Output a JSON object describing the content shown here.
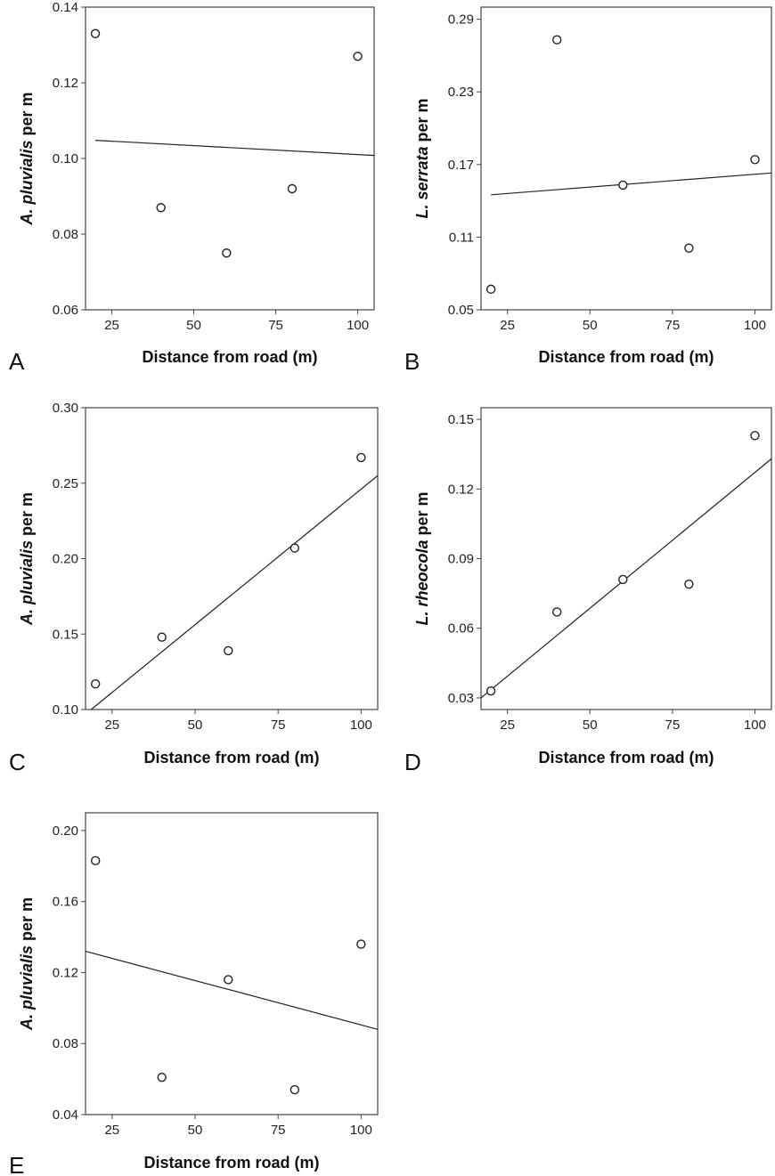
{
  "chart_data": [
    {
      "type": "scatter",
      "panel_label": "A",
      "xlabel": "Distance from road (m)",
      "ylabel_species": "A. pluvialis",
      "ylabel_suffix": " per m",
      "xlim": [
        17,
        105
      ],
      "ylim": [
        0.06,
        0.14
      ],
      "xticks": [
        25,
        50,
        75,
        100
      ],
      "xtick_labels": [
        "25",
        "50",
        "75",
        "100"
      ],
      "yticks": [
        0.06,
        0.08,
        0.1,
        0.12,
        0.14
      ],
      "ytick_labels": [
        "0.06",
        "0.08",
        "0.10",
        "0.12",
        "0.14"
      ],
      "x": [
        20,
        40,
        60,
        80,
        100
      ],
      "y": [
        0.133,
        0.087,
        0.075,
        0.092,
        0.127
      ],
      "fit_line": [
        [
          20,
          0.1048
        ],
        [
          105,
          0.1008
        ]
      ]
    },
    {
      "type": "scatter",
      "panel_label": "B",
      "xlabel": "Distance from road (m)",
      "ylabel_species": "L. serrata",
      "ylabel_suffix": " per m",
      "xlim": [
        17,
        105
      ],
      "ylim": [
        0.05,
        0.3
      ],
      "xticks": [
        25,
        50,
        75,
        100
      ],
      "xtick_labels": [
        "25",
        "50",
        "75",
        "100"
      ],
      "yticks": [
        0.05,
        0.11,
        0.17,
        0.23,
        0.29
      ],
      "ytick_labels": [
        "0.05",
        "0.11",
        "0.17",
        "0.23",
        "0.29"
      ],
      "x": [
        20,
        40,
        60,
        80,
        100
      ],
      "y": [
        0.067,
        0.273,
        0.153,
        0.101,
        0.174
      ],
      "fit_line": [
        [
          20,
          0.145
        ],
        [
          105,
          0.163
        ]
      ]
    },
    {
      "type": "scatter",
      "panel_label": "C",
      "xlabel": "Distance from road (m)",
      "ylabel_species": "A. pluvialis",
      "ylabel_suffix": " per m",
      "xlim": [
        17,
        105
      ],
      "ylim": [
        0.1,
        0.3
      ],
      "xticks": [
        25,
        50,
        75,
        100
      ],
      "xtick_labels": [
        "25",
        "50",
        "75",
        "100"
      ],
      "yticks": [
        0.1,
        0.15,
        0.2,
        0.25,
        0.3
      ],
      "ytick_labels": [
        "0.10",
        "0.15",
        "0.20",
        "0.25",
        "0.30"
      ],
      "x": [
        20,
        40,
        60,
        80,
        100
      ],
      "y": [
        0.117,
        0.148,
        0.139,
        0.207,
        0.267
      ],
      "fit_line": [
        [
          18.7,
          0.1
        ],
        [
          105,
          0.255
        ]
      ]
    },
    {
      "type": "scatter",
      "panel_label": "D",
      "xlabel": "Distance from road (m)",
      "ylabel_species": "L. rheocola",
      "ylabel_suffix": " per m",
      "xlim": [
        17,
        105
      ],
      "ylim": [
        0.025,
        0.155
      ],
      "xticks": [
        25,
        50,
        75,
        100
      ],
      "xtick_labels": [
        "25",
        "50",
        "75",
        "100"
      ],
      "yticks": [
        0.03,
        0.06,
        0.09,
        0.12,
        0.15
      ],
      "ytick_labels": [
        "0.03",
        "0.06",
        "0.09",
        "0.12",
        "0.15"
      ],
      "x": [
        20,
        40,
        60,
        80,
        100
      ],
      "y": [
        0.033,
        0.067,
        0.081,
        0.079,
        0.143
      ],
      "fit_line": [
        [
          17,
          0.03
        ],
        [
          105,
          0.133
        ]
      ]
    },
    {
      "type": "scatter",
      "panel_label": "E",
      "xlabel": "Distance from road (m)",
      "ylabel_species": "A. pluvialis",
      "ylabel_suffix": " per m",
      "xlim": [
        17,
        105
      ],
      "ylim": [
        0.04,
        0.21
      ],
      "xticks": [
        25,
        50,
        75,
        100
      ],
      "xtick_labels": [
        "25",
        "50",
        "75",
        "100"
      ],
      "yticks": [
        0.04,
        0.08,
        0.12,
        0.16,
        0.2
      ],
      "ytick_labels": [
        "0.04",
        "0.08",
        "0.12",
        "0.16",
        "0.20"
      ],
      "x": [
        20,
        40,
        60,
        80,
        100
      ],
      "y": [
        0.183,
        0.061,
        0.116,
        0.054,
        0.136
      ],
      "fit_line": [
        [
          17,
          0.132
        ],
        [
          105,
          0.088
        ]
      ]
    }
  ]
}
